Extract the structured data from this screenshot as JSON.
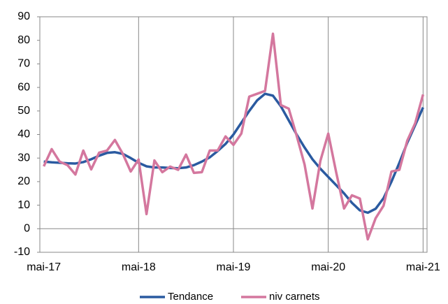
{
  "chart_data": {
    "type": "line",
    "categories": [
      "mai-17",
      null,
      null,
      null,
      null,
      null,
      null,
      null,
      null,
      null,
      null,
      null,
      "mai-18",
      null,
      null,
      null,
      null,
      null,
      null,
      null,
      null,
      null,
      null,
      null,
      "mai-19",
      null,
      null,
      null,
      null,
      null,
      null,
      null,
      null,
      null,
      null,
      null,
      "mai-20",
      null,
      null,
      null,
      null,
      null,
      null,
      null,
      null,
      null,
      null,
      null,
      "mai-21"
    ],
    "series": [
      {
        "name": "Tendance",
        "color": "#2a5aa0",
        "values": [
          28.5,
          28.2,
          28,
          27.8,
          27.7,
          28.3,
          29.5,
          31,
          32.2,
          32.5,
          31.8,
          30,
          28,
          26.5,
          26,
          26,
          25.8,
          25.7,
          26,
          27,
          28.5,
          30.3,
          33,
          36,
          40,
          45,
          50,
          54.5,
          57.3,
          56.5,
          52,
          46,
          40,
          34.5,
          29.5,
          25.5,
          22,
          18.5,
          15,
          11,
          7.8,
          6.8,
          8.5,
          13,
          20,
          28,
          36.5,
          44,
          51.5
        ]
      },
      {
        "name": "niv carnets",
        "color": "#d4779e",
        "values": [
          26.5,
          33.8,
          28.5,
          27,
          23,
          33.2,
          25.2,
          32.3,
          33.2,
          37.7,
          31.8,
          24.3,
          29.4,
          6.2,
          29,
          24,
          26.4,
          25,
          31.5,
          23.7,
          24,
          33.2,
          33.2,
          39.2,
          35.6,
          40.4,
          56.1,
          57.3,
          58.5,
          82.8,
          52.5,
          51,
          39.5,
          27.3,
          8.6,
          28.8,
          40.4,
          24,
          8.6,
          14.2,
          12.8,
          -4.5,
          4.5,
          9.8,
          24.3,
          25,
          37.4,
          44.8,
          57
        ]
      }
    ],
    "ylim": [
      -10,
      90
    ],
    "yticks": [
      -10,
      0,
      10,
      20,
      30,
      40,
      50,
      60,
      70,
      80,
      90
    ],
    "grid": "x",
    "legend": "bottom"
  }
}
